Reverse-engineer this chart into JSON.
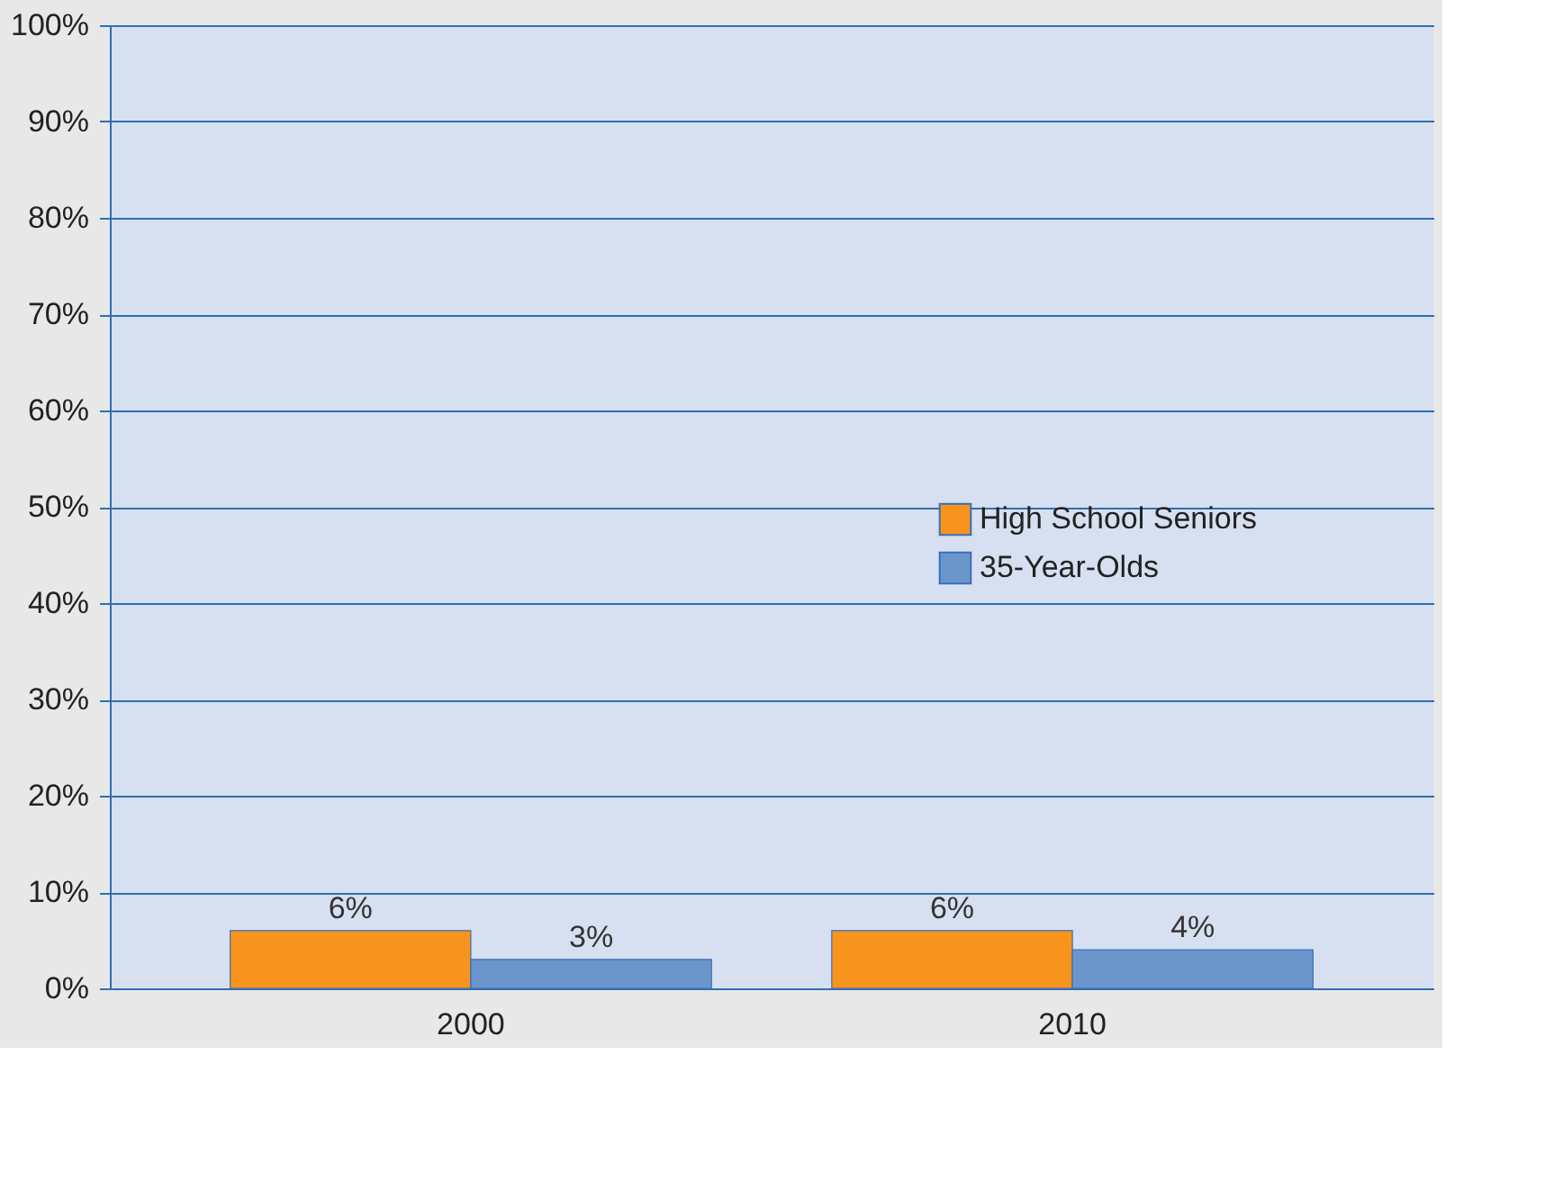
{
  "chart_data": {
    "type": "bar",
    "categories": [
      "2000",
      "2010"
    ],
    "series": [
      {
        "name": "High School Seniors",
        "color": "#f7941d",
        "values": [
          6,
          6
        ],
        "value_labels": [
          "6%",
          "6%"
        ]
      },
      {
        "name": "35-Year-Olds",
        "color": "#6b96cc",
        "values": [
          3,
          4
        ],
        "value_labels": [
          "3%",
          "4%"
        ]
      }
    ],
    "ylim": [
      0,
      100
    ],
    "yticks": [
      {
        "value": 0,
        "label": "0%"
      },
      {
        "value": 10,
        "label": "10%"
      },
      {
        "value": 20,
        "label": "20%"
      },
      {
        "value": 30,
        "label": "30%"
      },
      {
        "value": 40,
        "label": "40%"
      },
      {
        "value": 50,
        "label": "50%"
      },
      {
        "value": 60,
        "label": "60%"
      },
      {
        "value": 70,
        "label": "70%"
      },
      {
        "value": 80,
        "label": "80%"
      },
      {
        "value": 90,
        "label": "90%"
      },
      {
        "value": 100,
        "label": "100%"
      }
    ],
    "grid": "y",
    "legend": "right"
  }
}
